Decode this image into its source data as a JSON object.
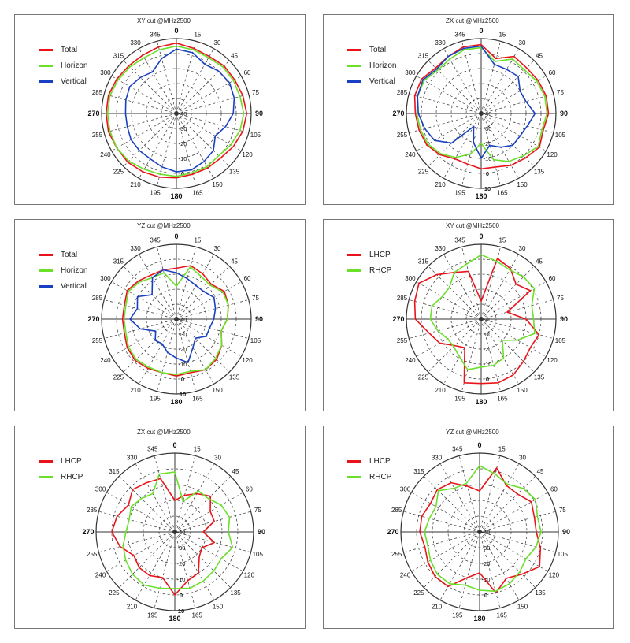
{
  "colors": {
    "total": "#e8141a",
    "horizon": "#6ae02a",
    "vertical": "#1840c0",
    "lhcp": "#e8141a",
    "rhcp": "#6ae02a",
    "grid": "#333333",
    "frame": "#777777"
  },
  "chart_data": [
    {
      "type": "polar-line",
      "title": "XY cut @MHz2500",
      "angle_labels": [
        "0",
        "15",
        "30",
        "45",
        "60",
        "75",
        "90",
        "105",
        "120",
        "135",
        "150",
        "165",
        "180",
        "195",
        "210",
        "225",
        "240",
        "255",
        "270",
        "285",
        "300",
        "315",
        "330",
        "345"
      ],
      "radial_labels": [
        "-40",
        "-30",
        "-20",
        "-10",
        "0"
      ],
      "rlim": [
        -40,
        10
      ],
      "angles": [
        0,
        15,
        30,
        45,
        60,
        75,
        90,
        105,
        120,
        135,
        150,
        165,
        180,
        195,
        210,
        225,
        240,
        255,
        270,
        285,
        300,
        315,
        330,
        345
      ],
      "series": [
        {
          "name": "Total",
          "color": "#e8141a",
          "values": [
            7,
            5,
            4,
            5,
            5,
            6,
            7,
            6,
            4,
            2,
            2,
            2,
            3,
            4,
            5,
            6,
            6,
            7,
            7,
            7,
            6,
            5,
            5,
            6
          ]
        },
        {
          "name": "Horizon",
          "color": "#6ae02a",
          "values": [
            5,
            4,
            3,
            4,
            4,
            4,
            5,
            4,
            2,
            0,
            1,
            1,
            2,
            2,
            3,
            5,
            6,
            6,
            6,
            6,
            5,
            4,
            3,
            4
          ]
        },
        {
          "name": "Vertical",
          "color": "#1840c0",
          "values": [
            3,
            2,
            -2,
            0,
            1,
            0,
            -2,
            -6,
            -10,
            -5,
            -3,
            -1,
            -1,
            -3,
            -5,
            -5,
            -5,
            -6,
            -6,
            -5,
            -4,
            -6,
            -8,
            -2
          ]
        }
      ]
    },
    {
      "type": "polar-line",
      "title": "ZX cut @MHz2500",
      "angle_labels": [
        "0",
        "15",
        "30",
        "45",
        "60",
        "75",
        "90",
        "105",
        "120",
        "135",
        "150",
        "165",
        "180",
        "195",
        "210",
        "225",
        "240",
        "255",
        "270",
        "285",
        "300",
        "315",
        "330",
        "345"
      ],
      "radial_labels": [
        "-40",
        "-30",
        "-20",
        "-10",
        "0",
        "10"
      ],
      "rlim": [
        -40,
        10
      ],
      "angles": [
        0,
        15,
        30,
        45,
        60,
        75,
        90,
        105,
        120,
        135,
        150,
        165,
        180,
        195,
        210,
        225,
        240,
        255,
        270,
        285,
        300,
        315,
        330,
        345
      ],
      "series": [
        {
          "name": "Total",
          "color": "#e8141a",
          "values": [
            6,
            -2,
            4,
            3,
            4,
            5,
            5,
            3,
            5,
            2,
            0,
            -3,
            -3,
            -5,
            -5,
            -1,
            2,
            3,
            4,
            6,
            6,
            3,
            4,
            6
          ]
        },
        {
          "name": "Horizon",
          "color": "#6ae02a",
          "values": [
            4,
            -4,
            2,
            1,
            3,
            4,
            4,
            2,
            4,
            0,
            -3,
            -8,
            -20,
            -12,
            -6,
            -2,
            1,
            2,
            3,
            4,
            4,
            1,
            2,
            4
          ]
        },
        {
          "name": "Vertical",
          "color": "#1840c0",
          "values": [
            5,
            -6,
            -6,
            -5,
            -10,
            -9,
            -4,
            -8,
            -10,
            -10,
            -14,
            -18,
            -10,
            -20,
            -30,
            -12,
            -4,
            -1,
            2,
            4,
            5,
            2,
            4,
            5
          ]
        }
      ]
    },
    {
      "type": "polar-line",
      "title": "YZ cut @MHz2500",
      "angle_labels": [
        "0",
        "15",
        "30",
        "45",
        "60",
        "75",
        "90",
        "105",
        "120",
        "135",
        "150",
        "165",
        "180",
        "195",
        "210",
        "225",
        "240",
        "255",
        "270",
        "285",
        "300",
        "315",
        "330",
        "345"
      ],
      "radial_labels": [
        "-40",
        "-30",
        "-20",
        "-10",
        "0",
        "10"
      ],
      "rlim": [
        -40,
        10
      ],
      "angles": [
        0,
        15,
        30,
        45,
        60,
        75,
        90,
        105,
        120,
        135,
        150,
        165,
        180,
        195,
        210,
        225,
        240,
        255,
        270,
        285,
        300,
        315,
        330,
        345
      ],
      "series": [
        {
          "name": "Total",
          "color": "#e8141a",
          "values": [
            -6,
            -3,
            -5,
            -7,
            -3,
            -4,
            -6,
            -9,
            -5,
            -2,
            -1,
            -3,
            -2,
            -3,
            -2,
            -1,
            -2,
            -4,
            -4,
            -4,
            -2,
            -4,
            -6,
            -6
          ]
        },
        {
          "name": "Horizon",
          "color": "#6ae02a",
          "values": [
            -18,
            -4,
            -7,
            -8,
            -4,
            -4,
            -6,
            -9,
            -5,
            -3,
            -1,
            -4,
            -3,
            -3,
            -3,
            -2,
            -3,
            -5,
            -5,
            -5,
            -3,
            -5,
            -8,
            -8
          ]
        },
        {
          "name": "Vertical",
          "color": "#1840c0",
          "values": [
            -9,
            -12,
            -14,
            -14,
            -11,
            -13,
            -15,
            -17,
            -17,
            -22,
            -18,
            -10,
            -14,
            -17,
            -21,
            -20,
            -24,
            -15,
            -9,
            -13,
            -10,
            -17,
            -8,
            -6
          ]
        }
      ]
    },
    {
      "type": "polar-line",
      "title": "XY cut @MHz2500",
      "angle_labels": [
        "0",
        "15",
        "30",
        "45",
        "60",
        "75",
        "90",
        "105",
        "120",
        "135",
        "150",
        "165",
        "180",
        "195",
        "210",
        "225",
        "240",
        "255",
        "270",
        "285",
        "300",
        "315",
        "330",
        "345"
      ],
      "radial_labels": [
        "-40",
        "-30",
        "-20",
        "-10",
        "0"
      ],
      "rlim": [
        -40,
        10
      ],
      "angles": [
        0,
        15,
        30,
        45,
        60,
        75,
        90,
        105,
        120,
        135,
        150,
        165,
        180,
        195,
        210,
        225,
        240,
        255,
        270,
        285,
        300,
        315,
        330,
        345
      ],
      "series": [
        {
          "name": "LHCP",
          "color": "#e8141a",
          "values": [
            -28,
            2,
            -1,
            -7,
            -2,
            -22,
            -10,
            0,
            -2,
            0,
            3,
            4,
            3,
            4,
            -18,
            -15,
            -8,
            -4,
            4,
            6,
            8,
            2,
            -4,
            -7
          ]
        },
        {
          "name": "RHCP",
          "color": "#6ae02a",
          "values": [
            3,
            0,
            -2,
            0,
            1,
            -5,
            -5,
            -3,
            -12,
            -20,
            -10,
            -8,
            -8,
            -5,
            -11,
            -14,
            -14,
            -10,
            -6,
            -6,
            -10,
            -10,
            -4,
            -2
          ]
        }
      ]
    },
    {
      "type": "polar-line",
      "title": "ZX cut @MHz2500",
      "angle_labels": [
        "0",
        "15",
        "30",
        "45",
        "60",
        "75",
        "90",
        "105",
        "120",
        "135",
        "150",
        "165",
        "180",
        "195",
        "210",
        "225",
        "240",
        "255",
        "270",
        "285",
        "300",
        "315",
        "330",
        "345"
      ],
      "radial_labels": [
        "-40",
        "-30",
        "-20",
        "-10",
        "0",
        "10"
      ],
      "rlim": [
        -40,
        10
      ],
      "angles": [
        0,
        15,
        30,
        45,
        60,
        75,
        90,
        105,
        120,
        135,
        150,
        165,
        180,
        195,
        210,
        225,
        240,
        255,
        270,
        285,
        300,
        315,
        330,
        345
      ],
      "series": [
        {
          "name": "LHCP",
          "color": "#e8141a",
          "values": [
            -20,
            -16,
            -12,
            -8,
            -14,
            -14,
            -22,
            -14,
            -20,
            -18,
            -10,
            -8,
            0,
            -10,
            -8,
            -8,
            -10,
            -4,
            0,
            -2,
            -6,
            -2,
            -4,
            -5
          ]
        },
        {
          "name": "RHCP",
          "color": "#6ae02a",
          "values": [
            -2,
            -20,
            -10,
            -10,
            -6,
            -4,
            -6,
            -2,
            -6,
            -5,
            -4,
            -3,
            -4,
            -3,
            -1,
            -2,
            -4,
            -6,
            -9,
            -10,
            -8,
            -10,
            -12,
            -2
          ]
        }
      ]
    },
    {
      "type": "polar-line",
      "title": "YZ cut @MHz2500",
      "angle_labels": [
        "0",
        "15",
        "30",
        "45",
        "60",
        "75",
        "90",
        "105",
        "120",
        "135",
        "150",
        "165",
        "180",
        "195",
        "210",
        "225",
        "240",
        "255",
        "270",
        "285",
        "300",
        "315",
        "330",
        "345"
      ],
      "radial_labels": [
        "-40",
        "-30",
        "-20",
        "-10",
        "0"
      ],
      "rlim": [
        -40,
        10
      ],
      "angles": [
        0,
        15,
        30,
        45,
        60,
        75,
        90,
        105,
        120,
        135,
        150,
        165,
        180,
        195,
        210,
        225,
        240,
        255,
        270,
        285,
        300,
        315,
        330,
        345
      ],
      "series": [
        {
          "name": "LHCP",
          "color": "#e8141a",
          "values": [
            -14,
            2,
            -6,
            -6,
            -2,
            -4,
            -4,
            0,
            4,
            -2,
            -6,
            0,
            -14,
            -10,
            0,
            0,
            -2,
            -4,
            -2,
            -2,
            -4,
            -2,
            -4,
            -10
          ]
        },
        {
          "name": "RHCP",
          "color": "#6ae02a",
          "values": [
            2,
            -2,
            -5,
            -1,
            1,
            -2,
            -1,
            -3,
            -6,
            -4,
            -2,
            -1,
            -3,
            -5,
            -2,
            -2,
            -4,
            -6,
            -5,
            -7,
            -8,
            -3,
            -8,
            -8
          ]
        }
      ]
    }
  ]
}
